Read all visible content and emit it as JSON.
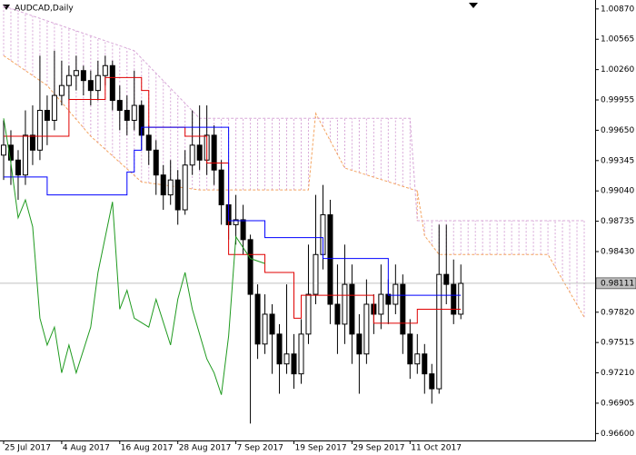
{
  "chart_data": {
    "type": "candlestick",
    "title": "AUDCAD,Daily",
    "x": [
      0,
      1,
      2,
      3,
      4,
      5,
      6,
      7,
      8,
      9,
      10,
      11,
      12,
      13,
      14,
      15,
      16,
      17,
      18,
      19,
      20,
      21,
      22,
      23,
      24,
      25,
      26,
      27,
      28,
      29,
      30,
      31,
      32,
      33,
      34,
      35,
      36,
      37,
      38,
      39,
      40,
      41,
      42,
      43,
      44,
      45,
      46,
      47,
      48,
      49,
      50,
      51,
      52,
      53,
      54,
      55,
      56,
      57,
      58,
      59,
      60,
      61,
      62,
      63
    ],
    "open": [
      0.994,
      0.995,
      0.9935,
      0.992,
      0.996,
      0.9945,
      0.9985,
      0.9975,
      1.0,
      1.001,
      1.002,
      1.0025,
      1.0015,
      1.0005,
      1.002,
      1.003,
      0.9995,
      0.9985,
      0.9975,
      0.999,
      0.996,
      0.9945,
      0.992,
      0.99,
      0.9915,
      0.9885,
      0.993,
      0.995,
      0.9935,
      0.996,
      0.9925,
      0.989,
      0.987,
      0.9875,
      0.9855,
      0.98,
      0.975,
      0.978,
      0.976,
      0.973,
      0.974,
      0.972,
      0.976,
      0.98,
      0.984,
      0.988,
      0.979,
      0.977,
      0.981,
      0.976,
      0.974,
      0.979,
      0.978,
      0.98,
      0.979,
      0.981,
      0.976,
      0.973,
      0.974,
      0.972,
      0.9705,
      0.982,
      0.981,
      0.978
    ],
    "high": [
      0.9975,
      0.9965,
      0.9945,
      0.9985,
      0.999,
      1.004,
      1.0,
      1.0045,
      1.0035,
      1.003,
      1.004,
      1.003,
      1.0025,
      1.0035,
      1.004,
      1.0035,
      1.001,
      1.0,
      1.0025,
      0.9995,
      0.997,
      0.9955,
      0.993,
      0.9935,
      0.9925,
      0.9945,
      0.9985,
      0.999,
      0.999,
      0.997,
      0.9935,
      0.9905,
      0.99,
      0.989,
      0.986,
      0.981,
      0.98,
      0.979,
      0.977,
      0.981,
      0.976,
      0.9775,
      0.985,
      0.99,
      0.991,
      0.9895,
      0.983,
      0.985,
      0.983,
      0.978,
      0.9815,
      0.98,
      0.983,
      0.9815,
      0.983,
      0.982,
      0.9775,
      0.976,
      0.975,
      0.973,
      0.987,
      0.987,
      0.9835,
      0.983
    ],
    "low": [
      0.9915,
      0.991,
      0.9895,
      0.991,
      0.993,
      0.9935,
      0.995,
      0.9965,
      0.999,
      0.9995,
      1.0005,
      1.0,
      0.999,
      0.9995,
      1.001,
      0.9985,
      0.9965,
      0.996,
      0.9965,
      0.9945,
      0.993,
      0.99,
      0.9885,
      0.989,
      0.987,
      0.988,
      0.992,
      0.9925,
      0.992,
      0.991,
      0.987,
      0.9855,
      0.985,
      0.984,
      0.967,
      0.9735,
      0.974,
      0.972,
      0.97,
      0.972,
      0.9705,
      0.971,
      0.975,
      0.979,
      0.9825,
      0.977,
      0.974,
      0.975,
      0.973,
      0.97,
      0.973,
      0.976,
      0.9765,
      0.977,
      0.978,
      0.974,
      0.9715,
      0.972,
      0.97,
      0.969,
      0.97,
      0.979,
      0.977,
      0.9775
    ],
    "close": [
      0.995,
      0.9935,
      0.992,
      0.996,
      0.9945,
      0.9985,
      0.9975,
      1.0,
      1.001,
      1.002,
      1.0025,
      1.0015,
      1.0005,
      1.002,
      1.003,
      0.9995,
      0.9985,
      0.9975,
      0.999,
      0.996,
      0.9945,
      0.992,
      0.99,
      0.9915,
      0.9885,
      0.993,
      0.995,
      0.9935,
      0.996,
      0.9925,
      0.989,
      0.987,
      0.9875,
      0.9855,
      0.98,
      0.975,
      0.978,
      0.976,
      0.973,
      0.974,
      0.972,
      0.976,
      0.98,
      0.984,
      0.988,
      0.979,
      0.977,
      0.981,
      0.976,
      0.974,
      0.979,
      0.978,
      0.98,
      0.979,
      0.981,
      0.976,
      0.973,
      0.974,
      0.972,
      0.9705,
      0.982,
      0.981,
      0.978,
      0.9811
    ],
    "candle_color": "#000000",
    "lines": [
      {
        "color": "#e00000",
        "step": true,
        "x": [
          0,
          9,
          14,
          19,
          20,
          25,
          28,
          31,
          36,
          40,
          41,
          51,
          57,
          63
        ],
        "values": [
          0.9959,
          0.9996,
          1.0018,
          1.0005,
          0.9968,
          0.9959,
          0.9932,
          0.984,
          0.9822,
          0.9776,
          0.9799,
          0.9771,
          0.9785,
          0.9785
        ]
      },
      {
        "color": "#0000ff",
        "step": true,
        "x": [
          0,
          6,
          16,
          17,
          18,
          19,
          31,
          36,
          44,
          53,
          63
        ],
        "values": [
          0.9918,
          0.99,
          0.99,
          0.9923,
          0.9945,
          0.9968,
          0.9874,
          0.9857,
          0.9836,
          0.9799,
          0.9799
        ]
      },
      {
        "color": "#1f9a1f",
        "step": false,
        "x": [
          0,
          1,
          2,
          3,
          4,
          5,
          6,
          7,
          8,
          9,
          10,
          12,
          13,
          15,
          16,
          17,
          18,
          20,
          21,
          23,
          24,
          25,
          26,
          28,
          29,
          30,
          31,
          32,
          34,
          36
        ],
        "values": [
          0.9977,
          0.9932,
          0.9877,
          0.9895,
          0.9868,
          0.9776,
          0.9749,
          0.9767,
          0.9721,
          0.9749,
          0.9721,
          0.9767,
          0.9822,
          0.9893,
          0.9785,
          0.9804,
          0.9776,
          0.9767,
          0.9795,
          0.9749,
          0.9795,
          0.9822,
          0.9785,
          0.9735,
          0.9721,
          0.9699,
          0.9758,
          0.9858,
          0.9836,
          0.9831
        ]
      }
    ],
    "cloud": {
      "span_a": {
        "color": "#f4a460",
        "x": [
          0,
          6,
          12,
          19,
          27,
          42,
          43,
          47,
          57,
          58,
          60,
          75,
          80
        ],
        "values": [
          1.004,
          1.001,
          0.9959,
          0.9913,
          0.9905,
          0.9905,
          0.9982,
          0.9927,
          0.9904,
          0.9859,
          0.984,
          0.984,
          0.9777
        ]
      },
      "span_b": {
        "color": "#d8a8d8",
        "x": [
          0,
          18,
          27,
          43,
          56,
          57,
          80
        ],
        "values": [
          1.009,
          1.0045,
          0.9977,
          0.9977,
          0.9977,
          0.9874,
          0.9874
        ]
      }
    },
    "current_price": 0.98111,
    "xlim": [
      -0.5,
      81.5
    ],
    "ylim": [
      0.9653,
      1.0096
    ],
    "xticks": [
      {
        "value": 0,
        "label": "25 Jul 2017"
      },
      {
        "value": 8,
        "label": "4 Aug 2017"
      },
      {
        "value": 16,
        "label": "16 Aug 2017"
      },
      {
        "value": 24,
        "label": "28 Aug 2017"
      },
      {
        "value": 32,
        "label": "7 Sep 2017"
      },
      {
        "value": 40,
        "label": "19 Sep 2017"
      },
      {
        "value": 48,
        "label": "29 Sep 2017"
      },
      {
        "value": 56,
        "label": "11 Oct 2017"
      }
    ],
    "yticks": [
      {
        "value": 1.0087,
        "label": "1.00870"
      },
      {
        "value": 1.00565,
        "label": "1.00565"
      },
      {
        "value": 1.0026,
        "label": "1.00260"
      },
      {
        "value": 0.99955,
        "label": "0.99955"
      },
      {
        "value": 0.9965,
        "label": "0.99650"
      },
      {
        "value": 0.99345,
        "label": "0.99345"
      },
      {
        "value": 0.9904,
        "label": "0.99040"
      },
      {
        "value": 0.98735,
        "label": "0.98735"
      },
      {
        "value": 0.9843,
        "label": "0.98430"
      },
      {
        "value": 0.9782,
        "label": "0.97820"
      },
      {
        "value": 0.97515,
        "label": "0.97515"
      },
      {
        "value": 0.9721,
        "label": "0.97210"
      },
      {
        "value": 0.96905,
        "label": "0.96905"
      },
      {
        "value": 0.966,
        "label": "0.96600"
      }
    ],
    "grid": false
  }
}
